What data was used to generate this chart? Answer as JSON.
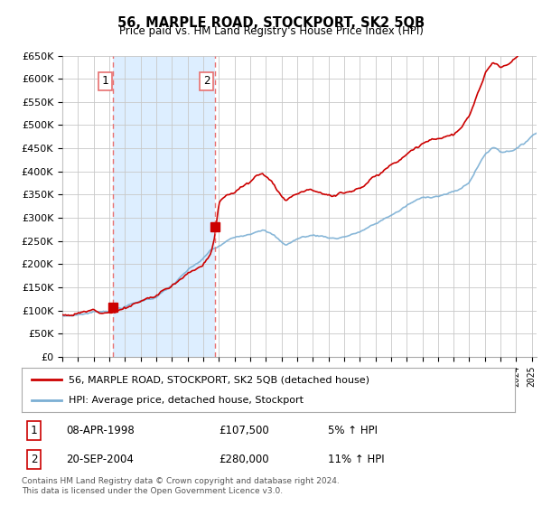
{
  "title": "56, MARPLE ROAD, STOCKPORT, SK2 5QB",
  "subtitle": "Price paid vs. HM Land Registry's House Price Index (HPI)",
  "ylabel_ticks": [
    "£0",
    "£50K",
    "£100K",
    "£150K",
    "£200K",
    "£250K",
    "£300K",
    "£350K",
    "£400K",
    "£450K",
    "£500K",
    "£550K",
    "£600K",
    "£650K"
  ],
  "ytick_values": [
    0,
    50000,
    100000,
    150000,
    200000,
    250000,
    300000,
    350000,
    400000,
    450000,
    500000,
    550000,
    600000,
    650000
  ],
  "sale1_date": 1998.25,
  "sale1_price": 107500,
  "sale1_label": "1",
  "sale2_date": 2004.75,
  "sale2_price": 280000,
  "sale2_label": "2",
  "hpi_color": "#7bafd4",
  "price_color": "#cc0000",
  "vline_color": "#e87070",
  "grid_color": "#cccccc",
  "bg_color": "#ffffff",
  "shade_color": "#ddeeff",
  "legend_label1": "56, MARPLE ROAD, STOCKPORT, SK2 5QB (detached house)",
  "legend_label2": "HPI: Average price, detached house, Stockport",
  "table_row1": [
    "1",
    "08-APR-1998",
    "£107,500",
    "5% ↑ HPI"
  ],
  "table_row2": [
    "2",
    "20-SEP-2004",
    "£280,000",
    "11% ↑ HPI"
  ],
  "footnote": "Contains HM Land Registry data © Crown copyright and database right 2024.\nThis data is licensed under the Open Government Licence v3.0.",
  "xmin": 1995.0,
  "xmax": 2025.3,
  "ymin": 0,
  "ymax": 650000
}
